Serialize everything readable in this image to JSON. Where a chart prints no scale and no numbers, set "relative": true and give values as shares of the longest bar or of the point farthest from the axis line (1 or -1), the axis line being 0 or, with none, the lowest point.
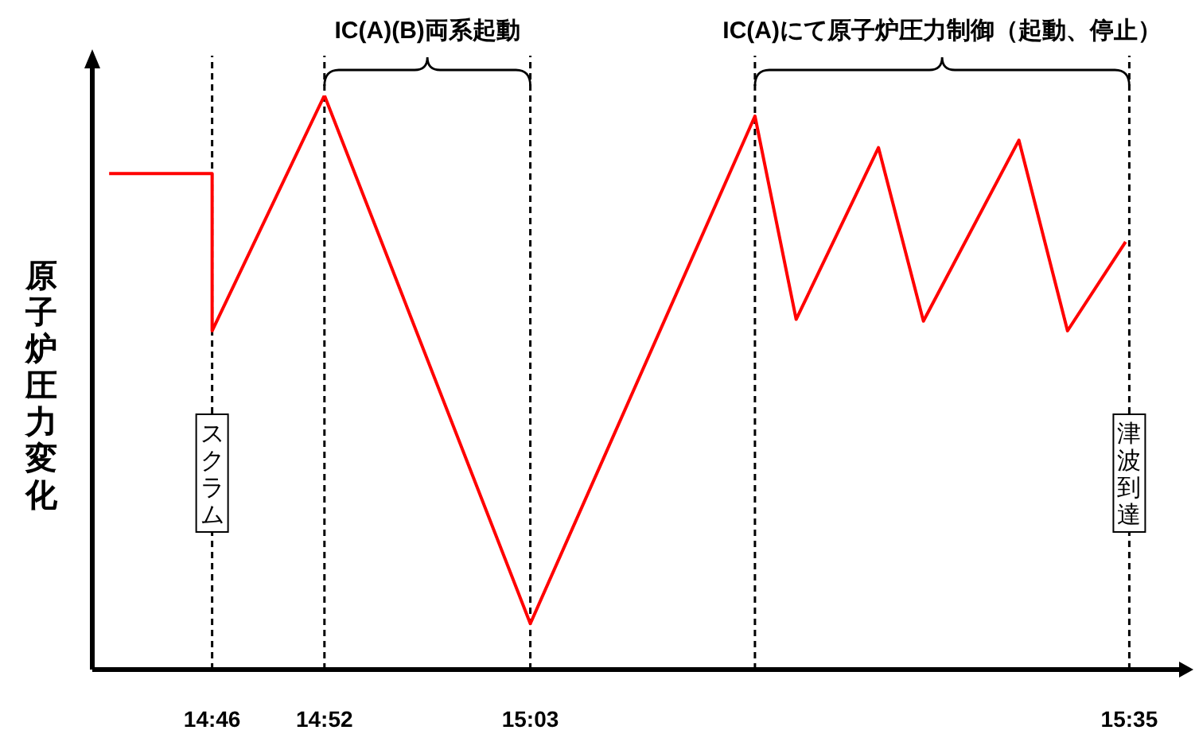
{
  "chart_data": {
    "type": "line",
    "relative": true,
    "ylabel": "原子炉圧力変化",
    "x": [
      14.675,
      14.7667,
      14.7667,
      14.8667,
      15.05,
      15.25,
      15.2867,
      15.36,
      15.4,
      15.485,
      15.5283,
      15.58
    ],
    "series": [
      {
        "color": "#ff0000",
        "values": [
          0.864,
          0.864,
          0.59,
          1,
          0.08,
          0.964,
          0.61,
          0.909,
          0.607,
          0.922,
          0.59,
          0.745
        ]
      }
    ],
    "xlim": [
      14.66,
      15.6333
    ],
    "xticks": [
      {
        "value": 14.7667,
        "label": "14:46"
      },
      {
        "value": 14.8667,
        "label": "14:52"
      },
      {
        "value": 15.05,
        "label": "15:03"
      },
      {
        "value": 15.5833,
        "label": "15:35"
      }
    ],
    "ref_lines": [
      {
        "axis": "x",
        "value": 14.7667,
        "label": "スクラム",
        "line_style": "dashed",
        "color": "#000000"
      },
      {
        "axis": "x",
        "value": 14.8667,
        "line_style": "dashed",
        "color": "#000000"
      },
      {
        "axis": "x",
        "value": 15.05,
        "line_style": "dashed",
        "color": "#000000"
      },
      {
        "axis": "x",
        "value": 15.25,
        "line_style": "dashed",
        "color": "#000000"
      },
      {
        "axis": "x",
        "value": 15.5833,
        "label": "津波到達",
        "line_style": "dashed",
        "color": "#000000"
      }
    ],
    "annotations": [
      "IC(A)(B)両系起動",
      "IC(A)にて原子炉圧力制御（起動、停止）"
    ],
    "grid": false,
    "legend": false,
    "marker": "none",
    "line_style": "solid"
  }
}
